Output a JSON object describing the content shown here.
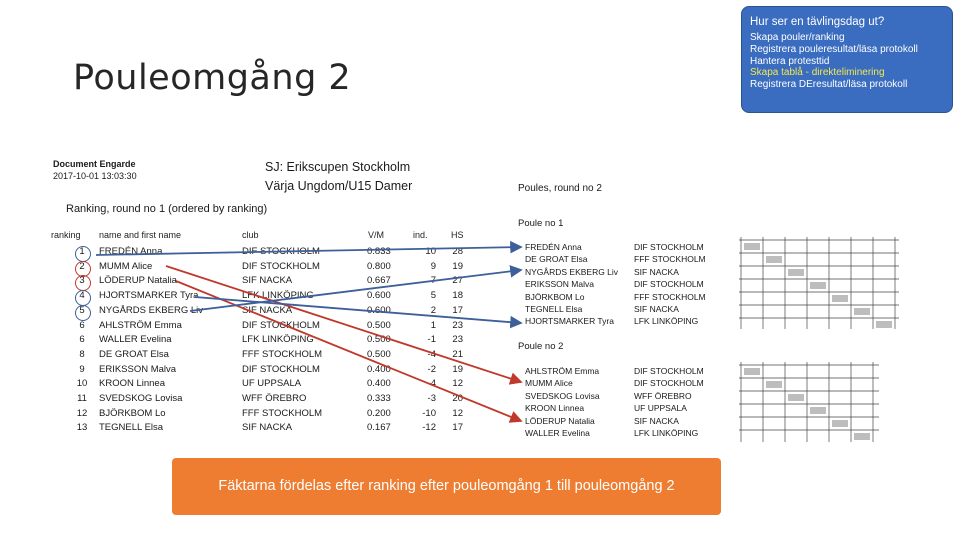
{
  "slide": {
    "title": "Pouleomgång 2"
  },
  "info_box": {
    "header": "Hur ser en tävlingsdag ut?",
    "lines": [
      "Skapa pouler/ranking",
      "Registrera pouleresultat/läsa protokoll",
      "Hantera protesttid",
      "Skapa tablå - direkteliminering",
      "Registrera DEresultat/läsa protokoll"
    ]
  },
  "document": {
    "meta_line1": "Document Engarde",
    "meta_line2": "2017-10-01 13:03:30",
    "competition": "SJ: Erikscupen Stockholm",
    "category": "Värja Ungdom/U15 Damer",
    "ranking_title": "Ranking, round no 1 (ordered by ranking)",
    "columns": [
      "ranking",
      "name and first name",
      "club",
      "V/M",
      "ind.",
      "HS"
    ],
    "rows": [
      {
        "rank": "1",
        "name": "FREDÉN Anna",
        "club": "DIF STOCKHOLM",
        "vm": "0.833",
        "ind": "10",
        "hs": "28"
      },
      {
        "rank": "2",
        "name": "MUMM Alice",
        "club": "DIF STOCKHOLM",
        "vm": "0.800",
        "ind": "9",
        "hs": "19"
      },
      {
        "rank": "3",
        "name": "LÖDERUP Natalia",
        "club": "SIF NACKA",
        "vm": "0.667",
        "ind": "7",
        "hs": "27"
      },
      {
        "rank": "4",
        "name": "HJORTSMARKER Tyra",
        "club": "LFK LINKÖPING",
        "vm": "0.600",
        "ind": "5",
        "hs": "18"
      },
      {
        "rank": "5",
        "name": "NYGÅRDS EKBERG Liv",
        "club": "SIF NACKA",
        "vm": "0.600",
        "ind": "2",
        "hs": "17"
      },
      {
        "rank": "6",
        "name": "AHLSTRÖM Emma",
        "club": "DIF STOCKHOLM",
        "vm": "0.500",
        "ind": "1",
        "hs": "23"
      },
      {
        "rank": "6",
        "name": "WALLER Evelina",
        "club": "LFK LINKÖPING",
        "vm": "0.500",
        "ind": "-1",
        "hs": "23"
      },
      {
        "rank": "8",
        "name": "DE GROAT Elsa",
        "club": "FFF STOCKHOLM",
        "vm": "0.500",
        "ind": "-4",
        "hs": "21"
      },
      {
        "rank": "9",
        "name": "ERIKSSON Malva",
        "club": "DIF STOCKHOLM",
        "vm": "0.400",
        "ind": "-2",
        "hs": "19"
      },
      {
        "rank": "10",
        "name": "KROON Linnea",
        "club": "UF UPPSALA",
        "vm": "0.400",
        "ind": "-4",
        "hs": "12"
      },
      {
        "rank": "11",
        "name": "SVEDSKOG Lovisa",
        "club": "WFF ÖREBRO",
        "vm": "0.333",
        "ind": "-3",
        "hs": "20"
      },
      {
        "rank": "12",
        "name": "BJÖRKBOM Lo",
        "club": "FFF STOCKHOLM",
        "vm": "0.200",
        "ind": "-10",
        "hs": "12"
      },
      {
        "rank": "13",
        "name": "TEGNELL Elsa",
        "club": "SIF NACKA",
        "vm": "0.167",
        "ind": "-12",
        "hs": "17"
      }
    ],
    "poules_title": "Poules, round no 2",
    "poule1": {
      "label": "Poule no 1",
      "rows": [
        {
          "name": "FREDÉN Anna",
          "club": "DIF STOCKHOLM"
        },
        {
          "name": "DE GROAT Elsa",
          "club": "FFF STOCKHOLM"
        },
        {
          "name": "NYGÅRDS EKBERG Liv",
          "club": "SIF NACKA"
        },
        {
          "name": "ERIKSSON Malva",
          "club": "DIF STOCKHOLM"
        },
        {
          "name": "BJÖRKBOM Lo",
          "club": "FFF STOCKHOLM"
        },
        {
          "name": "TEGNELL Elsa",
          "club": "SIF NACKA"
        },
        {
          "name": "HJORTSMARKER Tyra",
          "club": "LFK LINKÖPING"
        }
      ]
    },
    "poule2": {
      "label": "Poule no 2",
      "rows": [
        {
          "name": "AHLSTRÖM Emma",
          "club": "DIF STOCKHOLM"
        },
        {
          "name": "MUMM Alice",
          "club": "DIF STOCKHOLM"
        },
        {
          "name": "SVEDSKOG Lovisa",
          "club": "WFF ÖREBRO"
        },
        {
          "name": "KROON Linnea",
          "club": "UF UPPSALA"
        },
        {
          "name": "LÖDERUP Natalia",
          "club": "SIF NACKA"
        },
        {
          "name": "WALLER Evelina",
          "club": "LFK LINKÖPING"
        }
      ]
    }
  },
  "caption": "Fäktarna fördelas efter ranking efter pouleomgång 1 till pouleomgång 2",
  "colors": {
    "info_bg": "#3a6cc0",
    "info_highlight": "#f2e94e",
    "caption_bg": "#ee7d31",
    "arrow_blue": "#3d5f9a",
    "arrow_red": "#c0392b",
    "circle_red": "#c0392b",
    "circle_blue": "#3d5f9a"
  }
}
